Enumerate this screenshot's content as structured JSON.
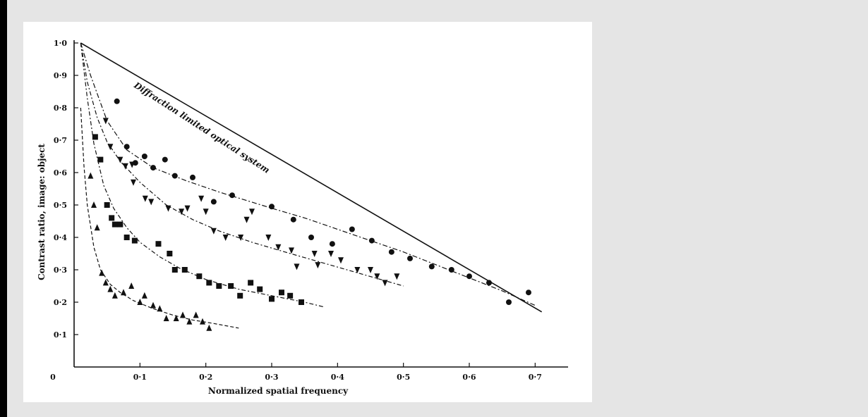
{
  "chart_data": {
    "type": "scatter",
    "title": "",
    "xlabel": "Normalized spatial frequency",
    "ylabel": "Contrast ratio, image: object",
    "xlim": [
      0,
      0.75
    ],
    "ylim": [
      0,
      1.0
    ],
    "origin_label": "0",
    "x_ticks": [
      0.1,
      0.2,
      0.3,
      0.4,
      0.5,
      0.6,
      0.7
    ],
    "x_tick_labels": [
      "0·1",
      "0·2",
      "0·3",
      "0·4",
      "0·5",
      "0·6",
      "0·7"
    ],
    "y_ticks": [
      0.1,
      0.2,
      0.3,
      0.4,
      0.5,
      0.6,
      0.7,
      0.8,
      0.9,
      1.0
    ],
    "y_tick_labels": [
      "0·1",
      "0·2",
      "0·3",
      "0·4",
      "0·5",
      "0·6",
      "0·7",
      "0·8",
      "0·9",
      "1·0"
    ],
    "grid": false,
    "annotations": [
      {
        "text": "Diffraction limited optical system",
        "x": 0.09,
        "y": 0.865,
        "angle_deg": 33
      }
    ],
    "reference_line": {
      "name": "Diffraction limited optical system",
      "x": [
        0.01,
        0.71
      ],
      "y": [
        1.0,
        0.17
      ]
    },
    "series": [
      {
        "marker": "circle",
        "points": [
          [
            0.065,
            0.82
          ],
          [
            0.08,
            0.68
          ],
          [
            0.093,
            0.63
          ],
          [
            0.107,
            0.65
          ],
          [
            0.12,
            0.615
          ],
          [
            0.138,
            0.64
          ],
          [
            0.153,
            0.59
          ],
          [
            0.18,
            0.585
          ],
          [
            0.212,
            0.51
          ],
          [
            0.24,
            0.53
          ],
          [
            0.3,
            0.495
          ],
          [
            0.333,
            0.455
          ],
          [
            0.36,
            0.4
          ],
          [
            0.392,
            0.38
          ],
          [
            0.422,
            0.425
          ],
          [
            0.452,
            0.39
          ],
          [
            0.482,
            0.355
          ],
          [
            0.51,
            0.335
          ],
          [
            0.543,
            0.31
          ],
          [
            0.573,
            0.3
          ],
          [
            0.6,
            0.28
          ],
          [
            0.63,
            0.26
          ],
          [
            0.66,
            0.2
          ],
          [
            0.69,
            0.23
          ]
        ],
        "fit_x": [
          0.01,
          0.025,
          0.05,
          0.08,
          0.12,
          0.17,
          0.22,
          0.26,
          0.3,
          0.35,
          0.4,
          0.45,
          0.5,
          0.55,
          0.6,
          0.65,
          0.7
        ],
        "fit_y": [
          1.0,
          0.9,
          0.76,
          0.67,
          0.615,
          0.575,
          0.54,
          0.515,
          0.49,
          0.46,
          0.425,
          0.39,
          0.355,
          0.315,
          0.275,
          0.235,
          0.19
        ]
      },
      {
        "marker": "triangle-down",
        "points": [
          [
            0.048,
            0.76
          ],
          [
            0.055,
            0.68
          ],
          [
            0.07,
            0.64
          ],
          [
            0.078,
            0.62
          ],
          [
            0.088,
            0.625
          ],
          [
            0.09,
            0.57
          ],
          [
            0.108,
            0.52
          ],
          [
            0.117,
            0.51
          ],
          [
            0.143,
            0.49
          ],
          [
            0.163,
            0.48
          ],
          [
            0.172,
            0.49
          ],
          [
            0.193,
            0.52
          ],
          [
            0.2,
            0.48
          ],
          [
            0.212,
            0.42
          ],
          [
            0.23,
            0.4
          ],
          [
            0.253,
            0.4
          ],
          [
            0.262,
            0.455
          ],
          [
            0.27,
            0.48
          ],
          [
            0.295,
            0.4
          ],
          [
            0.31,
            0.37
          ],
          [
            0.33,
            0.36
          ],
          [
            0.338,
            0.31
          ],
          [
            0.365,
            0.35
          ],
          [
            0.37,
            0.315
          ],
          [
            0.39,
            0.35
          ],
          [
            0.405,
            0.33
          ],
          [
            0.43,
            0.3
          ],
          [
            0.45,
            0.3
          ],
          [
            0.46,
            0.28
          ],
          [
            0.472,
            0.26
          ],
          [
            0.49,
            0.28
          ]
        ],
        "fit_x": [
          0.01,
          0.02,
          0.035,
          0.05,
          0.07,
          0.1,
          0.14,
          0.18,
          0.22,
          0.27,
          0.32,
          0.38,
          0.44,
          0.5
        ],
        "fit_y": [
          1.0,
          0.88,
          0.77,
          0.695,
          0.635,
          0.57,
          0.5,
          0.455,
          0.42,
          0.385,
          0.355,
          0.32,
          0.285,
          0.25
        ]
      },
      {
        "marker": "square",
        "points": [
          [
            0.032,
            0.71
          ],
          [
            0.04,
            0.64
          ],
          [
            0.05,
            0.5
          ],
          [
            0.057,
            0.46
          ],
          [
            0.062,
            0.44
          ],
          [
            0.07,
            0.44
          ],
          [
            0.08,
            0.4
          ],
          [
            0.092,
            0.39
          ],
          [
            0.128,
            0.38
          ],
          [
            0.145,
            0.35
          ],
          [
            0.153,
            0.3
          ],
          [
            0.168,
            0.3
          ],
          [
            0.19,
            0.28
          ],
          [
            0.205,
            0.26
          ],
          [
            0.22,
            0.25
          ],
          [
            0.238,
            0.25
          ],
          [
            0.252,
            0.22
          ],
          [
            0.268,
            0.26
          ],
          [
            0.282,
            0.24
          ],
          [
            0.3,
            0.21
          ],
          [
            0.315,
            0.23
          ],
          [
            0.328,
            0.22
          ],
          [
            0.345,
            0.2
          ]
        ],
        "fit_x": [
          0.01,
          0.02,
          0.03,
          0.045,
          0.06,
          0.08,
          0.1,
          0.13,
          0.16,
          0.2,
          0.25,
          0.3,
          0.35,
          0.38
        ],
        "fit_y": [
          1.0,
          0.83,
          0.69,
          0.56,
          0.49,
          0.43,
          0.385,
          0.34,
          0.305,
          0.27,
          0.24,
          0.22,
          0.2,
          0.185
        ]
      },
      {
        "marker": "triangle-up",
        "points": [
          [
            0.025,
            0.59
          ],
          [
            0.03,
            0.5
          ],
          [
            0.035,
            0.43
          ],
          [
            0.042,
            0.29
          ],
          [
            0.048,
            0.26
          ],
          [
            0.055,
            0.24
          ],
          [
            0.062,
            0.22
          ],
          [
            0.075,
            0.23
          ],
          [
            0.087,
            0.25
          ],
          [
            0.1,
            0.2
          ],
          [
            0.107,
            0.22
          ],
          [
            0.12,
            0.19
          ],
          [
            0.13,
            0.18
          ],
          [
            0.14,
            0.15
          ],
          [
            0.155,
            0.15
          ],
          [
            0.165,
            0.16
          ],
          [
            0.175,
            0.14
          ],
          [
            0.185,
            0.16
          ],
          [
            0.195,
            0.14
          ],
          [
            0.205,
            0.12
          ]
        ],
        "fit_x": [
          0.01,
          0.015,
          0.02,
          0.03,
          0.04,
          0.055,
          0.07,
          0.09,
          0.12,
          0.15,
          0.18,
          0.21,
          0.25
        ],
        "fit_y": [
          0.8,
          0.62,
          0.5,
          0.37,
          0.3,
          0.255,
          0.23,
          0.205,
          0.18,
          0.16,
          0.145,
          0.135,
          0.12
        ]
      }
    ]
  }
}
